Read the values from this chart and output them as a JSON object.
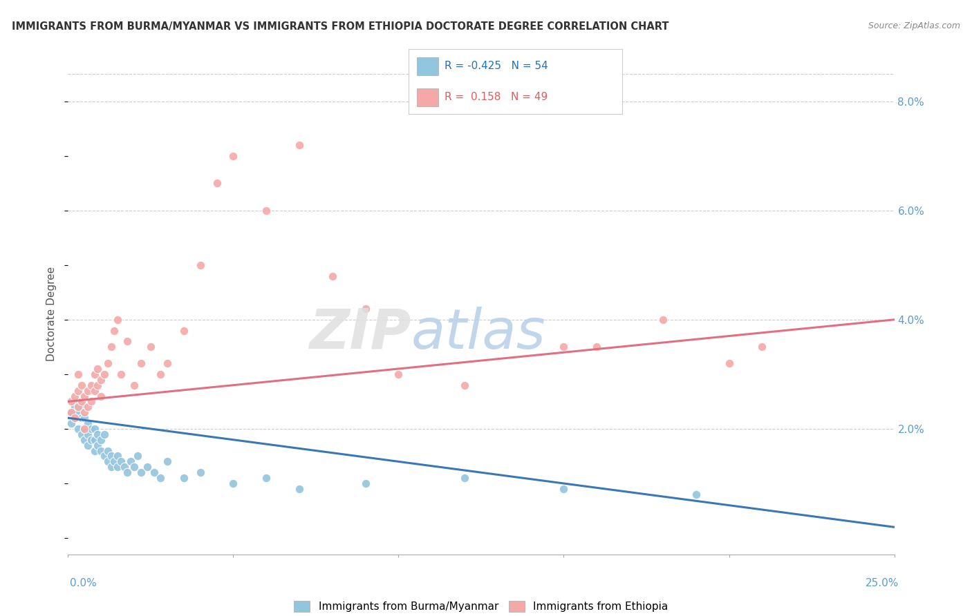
{
  "title": "IMMIGRANTS FROM BURMA/MYANMAR VS IMMIGRANTS FROM ETHIOPIA DOCTORATE DEGREE CORRELATION CHART",
  "source": "Source: ZipAtlas.com",
  "ylabel": "Doctorate Degree",
  "legend_blue_label": "R = -0.425   N = 54",
  "legend_pink_label": "R =  0.158   N = 49",
  "legend_bottom_blue": "Immigrants from Burma/Myanmar",
  "legend_bottom_pink": "Immigrants from Ethiopia",
  "blue_color": "#92c5de",
  "pink_color": "#f4a9a8",
  "blue_line_color": "#3a78b5",
  "pink_line_color": "#e07080",
  "xmin": 0.0,
  "xmax": 0.25,
  "ymin": -0.003,
  "ymax": 0.085,
  "blue_trend_x": [
    0.0,
    0.25
  ],
  "blue_trend_y": [
    0.022,
    0.002
  ],
  "pink_trend_x": [
    0.0,
    0.25
  ],
  "pink_trend_y": [
    0.025,
    0.04
  ],
  "blue_scatter_x": [
    0.001,
    0.001,
    0.002,
    0.002,
    0.003,
    0.003,
    0.003,
    0.004,
    0.004,
    0.004,
    0.005,
    0.005,
    0.005,
    0.006,
    0.006,
    0.006,
    0.007,
    0.007,
    0.008,
    0.008,
    0.008,
    0.009,
    0.009,
    0.01,
    0.01,
    0.011,
    0.011,
    0.012,
    0.012,
    0.013,
    0.013,
    0.014,
    0.015,
    0.015,
    0.016,
    0.017,
    0.018,
    0.019,
    0.02,
    0.021,
    0.022,
    0.024,
    0.026,
    0.028,
    0.03,
    0.035,
    0.04,
    0.05,
    0.06,
    0.07,
    0.09,
    0.12,
    0.15,
    0.19
  ],
  "blue_scatter_y": [
    0.023,
    0.021,
    0.024,
    0.022,
    0.025,
    0.023,
    0.02,
    0.022,
    0.024,
    0.019,
    0.02,
    0.022,
    0.018,
    0.021,
    0.019,
    0.017,
    0.02,
    0.018,
    0.02,
    0.018,
    0.016,
    0.019,
    0.017,
    0.018,
    0.016,
    0.019,
    0.015,
    0.016,
    0.014,
    0.015,
    0.013,
    0.014,
    0.015,
    0.013,
    0.014,
    0.013,
    0.012,
    0.014,
    0.013,
    0.015,
    0.012,
    0.013,
    0.012,
    0.011,
    0.014,
    0.011,
    0.012,
    0.01,
    0.011,
    0.009,
    0.01,
    0.011,
    0.009,
    0.008
  ],
  "pink_scatter_x": [
    0.001,
    0.001,
    0.002,
    0.002,
    0.003,
    0.003,
    0.003,
    0.004,
    0.004,
    0.005,
    0.005,
    0.005,
    0.006,
    0.006,
    0.007,
    0.007,
    0.008,
    0.008,
    0.009,
    0.009,
    0.01,
    0.01,
    0.011,
    0.012,
    0.013,
    0.014,
    0.015,
    0.016,
    0.018,
    0.02,
    0.022,
    0.025,
    0.028,
    0.03,
    0.035,
    0.04,
    0.045,
    0.05,
    0.06,
    0.07,
    0.08,
    0.09,
    0.1,
    0.12,
    0.15,
    0.16,
    0.18,
    0.2,
    0.21
  ],
  "pink_scatter_y": [
    0.025,
    0.023,
    0.026,
    0.022,
    0.03,
    0.027,
    0.024,
    0.028,
    0.025,
    0.026,
    0.023,
    0.02,
    0.027,
    0.024,
    0.028,
    0.025,
    0.03,
    0.027,
    0.031,
    0.028,
    0.029,
    0.026,
    0.03,
    0.032,
    0.035,
    0.038,
    0.04,
    0.03,
    0.036,
    0.028,
    0.032,
    0.035,
    0.03,
    0.032,
    0.038,
    0.05,
    0.065,
    0.07,
    0.06,
    0.072,
    0.048,
    0.042,
    0.03,
    0.028,
    0.035,
    0.035,
    0.04,
    0.032,
    0.035
  ]
}
